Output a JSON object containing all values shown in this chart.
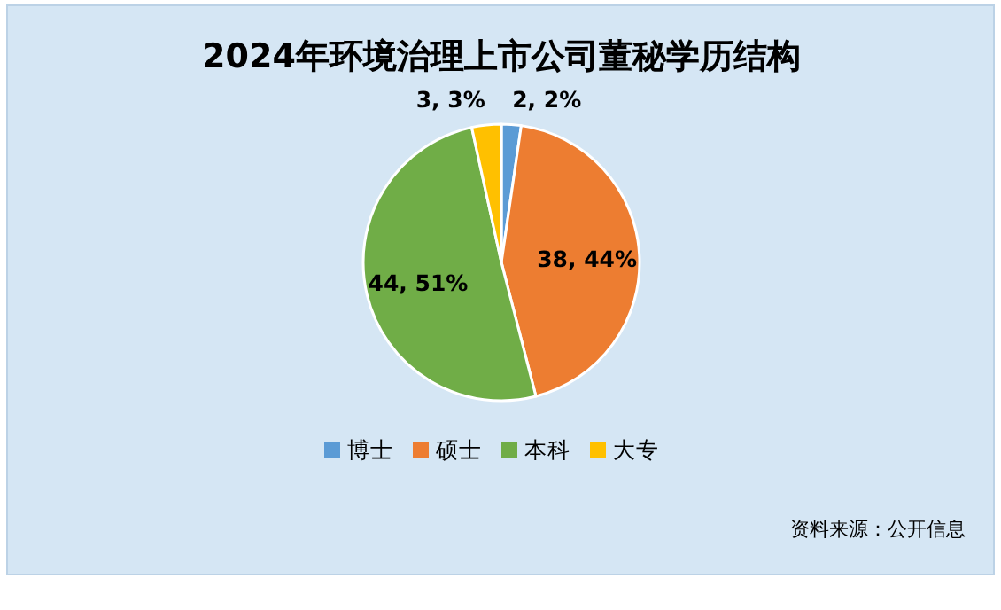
{
  "chart_data": {
    "type": "pie",
    "title": "2024年环境治理上市公司董秘学历结构",
    "categories": [
      "博士",
      "硕士",
      "本科",
      "大专"
    ],
    "values": [
      2,
      38,
      44,
      3
    ],
    "colors": [
      "#5b9bd5",
      "#ed7d31",
      "#70ad47",
      "#ffc000"
    ],
    "value_labels": [
      "2, 2%",
      "38, 44%",
      "44, 51%",
      "3, 3%"
    ],
    "legend": "bottom",
    "annotations": [
      "资料来源：公开信息"
    ]
  }
}
